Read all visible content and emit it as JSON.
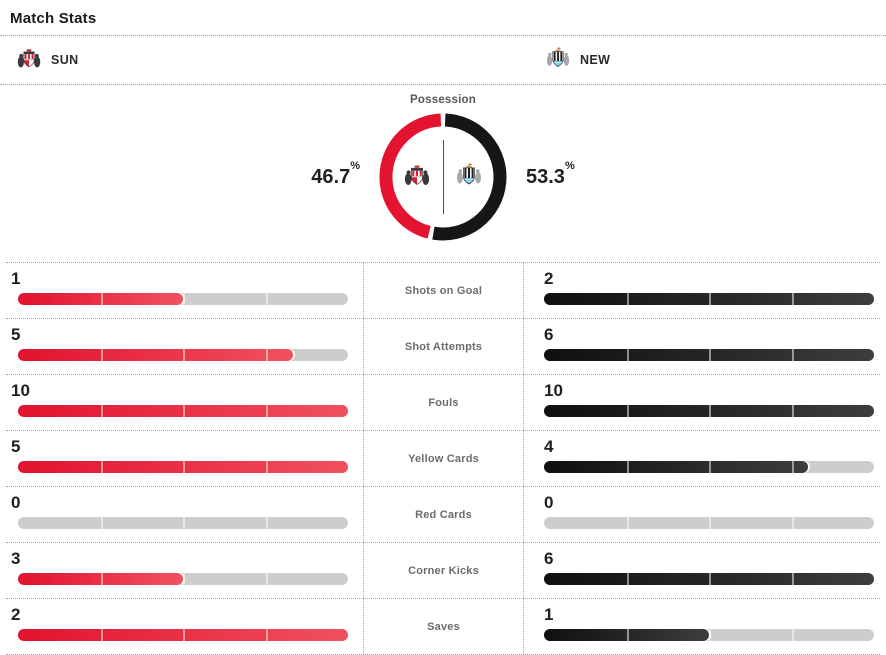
{
  "title": "Match Stats",
  "teams": {
    "home": {
      "abbr": "SUN"
    },
    "away": {
      "abbr": "NEW"
    }
  },
  "possession": {
    "label": "Possession",
    "home": 46.7,
    "away": 53.3,
    "unit": "%"
  },
  "stats": [
    {
      "label": "Shots on Goal",
      "home": 1,
      "away": 2
    },
    {
      "label": "Shot Attempts",
      "home": 5,
      "away": 6
    },
    {
      "label": "Fouls",
      "home": 10,
      "away": 10
    },
    {
      "label": "Yellow Cards",
      "home": 5,
      "away": 4
    },
    {
      "label": "Red Cards",
      "home": 0,
      "away": 0
    },
    {
      "label": "Corner Kicks",
      "home": 3,
      "away": 6
    },
    {
      "label": "Saves",
      "home": 2,
      "away": 1
    }
  ],
  "colors": {
    "home_bar_start": "#e2122d",
    "home_bar_end": "#f0515f",
    "away_bar_start": "#0f0f0f",
    "away_bar_end": "#3d3d3d",
    "track": "#cdcdcd",
    "donut_home": "#e4132f",
    "donut_away": "#161616"
  },
  "chart_data": [
    {
      "type": "pie",
      "title": "Possession",
      "labels": [
        "SUN",
        "NEW"
      ],
      "values": [
        46.7,
        53.3
      ],
      "unit": "%",
      "colors": [
        "#e4132f",
        "#161616"
      ],
      "donut": true,
      "legend_position": "sides"
    },
    {
      "type": "bar",
      "title": "Match Stats",
      "categories": [
        "Shots on Goal",
        "Shot Attempts",
        "Fouls",
        "Yellow Cards",
        "Red Cards",
        "Corner Kicks",
        "Saves"
      ],
      "series": [
        {
          "name": "SUN",
          "values": [
            1,
            5,
            10,
            5,
            0,
            3,
            2
          ]
        },
        {
          "name": "NEW",
          "values": [
            2,
            6,
            10,
            4,
            0,
            6,
            1
          ]
        }
      ],
      "orientation": "horizontal",
      "scaling": "each pair of bars normalized to the max of the two values",
      "grid": false
    }
  ]
}
